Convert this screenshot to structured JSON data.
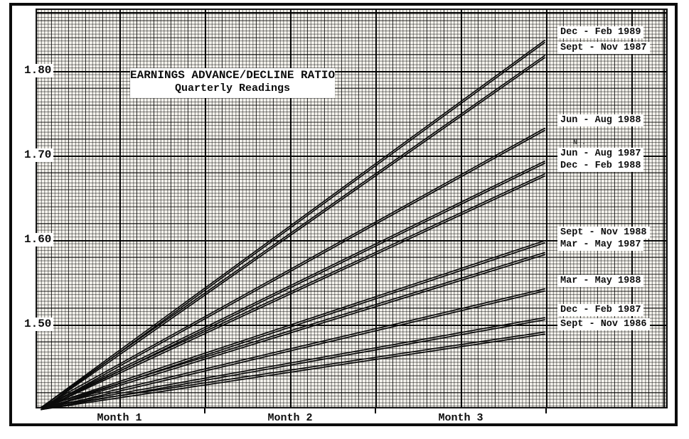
{
  "page": {
    "background": "#ffffff",
    "ink": "#0d0d0d",
    "paper_tint": "#f6f4ee",
    "style": "photocopied typewriter chart on fine graph paper inside a black frame"
  },
  "chart_data": {
    "type": "line",
    "title": "EARNINGS ADVANCE/DECLINE RATIO",
    "subtitle": "Quarterly Readings",
    "description": "Fan of straight rays from a common origin; each ray is one quarterly reading drawn over three months",
    "x_unit": "months",
    "x_tick_labels": [
      "Month 1",
      "Month 2",
      "Month 3"
    ],
    "y_tick_labels": [
      "1.80",
      "1.70",
      "1.60",
      "1.50"
    ],
    "ylim": [
      1.4,
      1.875
    ],
    "xlim": [
      0,
      3.72
    ],
    "grid": "on (fine engineering graph paper, heavy rule every major division)",
    "legend_position": "labels at right end of each line",
    "series": [
      {
        "name": "Dec - Feb 1989",
        "x": [
          0,
          3
        ],
        "values": [
          1.4,
          1.835
        ]
      },
      {
        "name": "Sept - Nov 1987",
        "x": [
          0,
          3
        ],
        "values": [
          1.4,
          1.817
        ]
      },
      {
        "name": "Jun - Aug 1988",
        "x": [
          0,
          3
        ],
        "values": [
          1.4,
          1.731
        ]
      },
      {
        "name": "Jun - Aug 1987",
        "x": [
          0,
          3
        ],
        "values": [
          1.4,
          1.692
        ]
      },
      {
        "name": "Dec - Feb 1988",
        "x": [
          0,
          3
        ],
        "values": [
          1.4,
          1.677
        ]
      },
      {
        "name": "Sept - Nov 1988",
        "x": [
          0,
          3
        ],
        "values": [
          1.4,
          1.598
        ]
      },
      {
        "name": "Mar - May 1987",
        "x": [
          0,
          3
        ],
        "values": [
          1.4,
          1.584
        ]
      },
      {
        "name": "Mar - May 1988",
        "x": [
          0,
          3
        ],
        "values": [
          1.4,
          1.541
        ]
      },
      {
        "name": "Dec - Feb 1987",
        "x": [
          0,
          3
        ],
        "values": [
          1.4,
          1.507
        ]
      },
      {
        "name": "Sept - Nov 1986",
        "x": [
          0,
          3
        ],
        "values": [
          1.4,
          1.49
        ]
      }
    ],
    "artifacts": {
      "stray_mark": "N ."
    }
  }
}
